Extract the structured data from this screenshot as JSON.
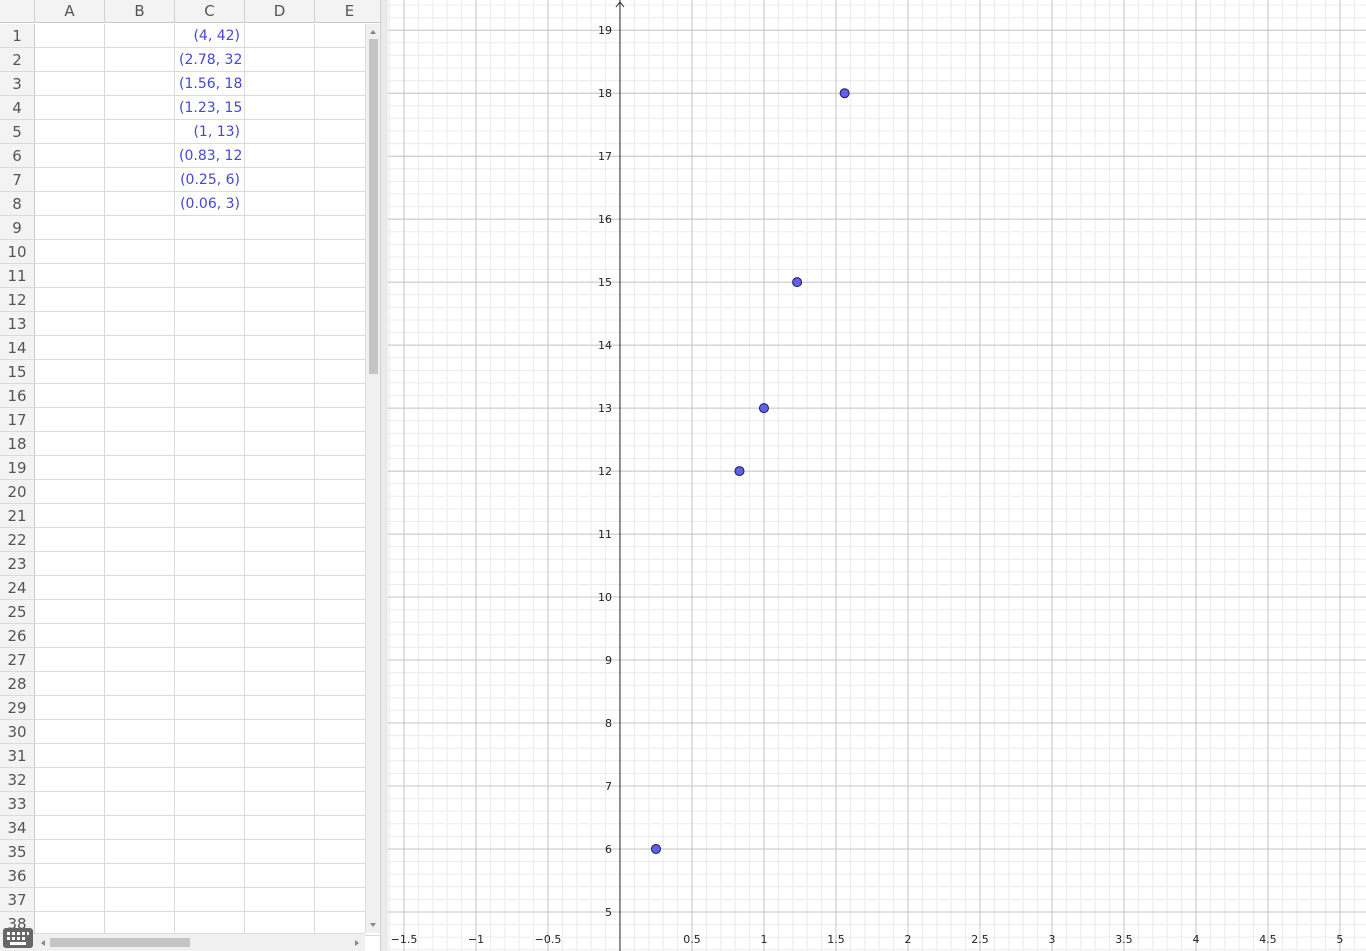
{
  "spreadsheet": {
    "columns": [
      "A",
      "B",
      "C",
      "D",
      "E"
    ],
    "rows": [
      1,
      2,
      3,
      4,
      5,
      6,
      7,
      8,
      9,
      10,
      11,
      12,
      13,
      14,
      15,
      16,
      17,
      18,
      19,
      20,
      21,
      22,
      23,
      24,
      25,
      26,
      27,
      28,
      29,
      30,
      31,
      32,
      33,
      34,
      35,
      36,
      37,
      38
    ],
    "column_c": [
      "(4, 42)",
      "(2.78, 32",
      "(1.56, 18",
      "(1.23, 15",
      "(1, 13)",
      "(0.83, 12",
      "(0.25, 6)",
      "(0.06, 3)"
    ]
  },
  "graph": {
    "xlim": [
      -1.611,
      5.181
    ],
    "ylim": [
      4.38,
      19.48
    ],
    "xticks": [
      {
        "value": -1.5,
        "label": "−1.5"
      },
      {
        "value": -1,
        "label": "−1"
      },
      {
        "value": -0.5,
        "label": "−0.5"
      },
      0.5,
      1,
      1.5,
      2,
      2.5,
      3,
      3.5,
      4,
      4.5,
      5
    ],
    "yticks": [
      5,
      6,
      7,
      8,
      9,
      10,
      11,
      12,
      13,
      14,
      15,
      16,
      17,
      18,
      19
    ],
    "points": [
      {
        "x": 1.56,
        "y": 18
      },
      {
        "x": 1.23,
        "y": 15
      },
      {
        "x": 1,
        "y": 13
      },
      {
        "x": 0.83,
        "y": 12
      },
      {
        "x": 0.25,
        "y": 6
      }
    ],
    "point_color": "#6060f0"
  }
}
